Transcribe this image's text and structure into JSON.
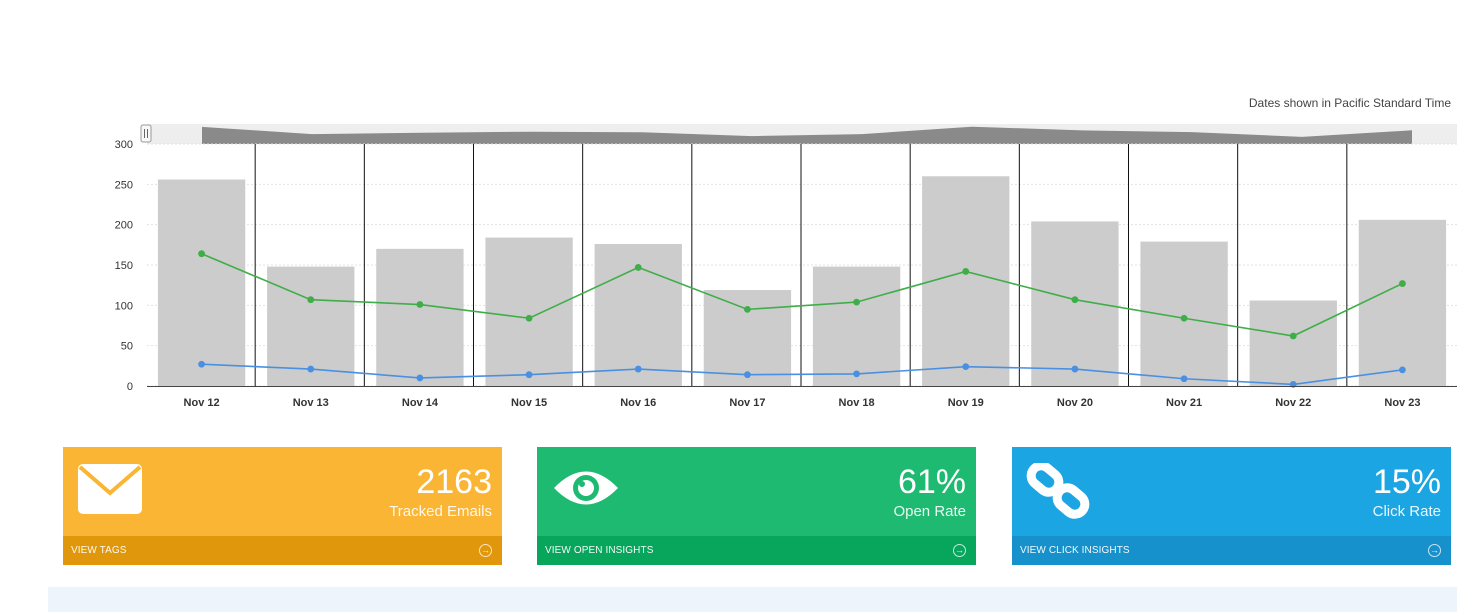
{
  "timezone_note": "Dates shown in Pacific Standard Time",
  "colors": {
    "bars": "#cccccc",
    "green_series": "#3fae49",
    "blue_series": "#4a90e2",
    "navigator_fill": "#8a8a8a",
    "navigator_bg": "#eeeeee"
  },
  "chart_data": {
    "type": "bar",
    "categories": [
      "Nov 12",
      "Nov 13",
      "Nov 14",
      "Nov 15",
      "Nov 16",
      "Nov 17",
      "Nov 18",
      "Nov 19",
      "Nov 20",
      "Nov 21",
      "Nov 22",
      "Nov 23"
    ],
    "series": [
      {
        "type": "bar",
        "values": [
          256,
          148,
          170,
          184,
          176,
          119,
          148,
          260,
          204,
          179,
          106,
          206
        ]
      },
      {
        "type": "line",
        "values": [
          164,
          107,
          101,
          84,
          147,
          95,
          104,
          142,
          107,
          84,
          62,
          127
        ]
      },
      {
        "type": "line",
        "values": [
          27,
          21,
          10,
          14,
          21,
          14,
          15,
          24,
          21,
          9,
          2,
          20
        ]
      }
    ],
    "yticks": [
      0,
      50,
      100,
      150,
      200,
      250,
      300
    ],
    "ylim": [
      0,
      300
    ],
    "grid": true,
    "navigator": true
  },
  "cards": [
    {
      "value": "2163",
      "label": "Tracked Emails",
      "link": "VIEW TAGS",
      "icon": "envelope-icon",
      "color": "#fbb534",
      "foot_color": "#e0970b"
    },
    {
      "value": "61%",
      "label": "Open Rate",
      "link": "VIEW OPEN INSIGHTS",
      "icon": "eye-icon",
      "color": "#1fba72",
      "foot_color": "#08a55c"
    },
    {
      "value": "15%",
      "label": "Click Rate",
      "link": "VIEW CLICK INSIGHTS",
      "icon": "chain-link-icon",
      "color": "#1ba5e3",
      "foot_color": "#1791cb"
    }
  ]
}
